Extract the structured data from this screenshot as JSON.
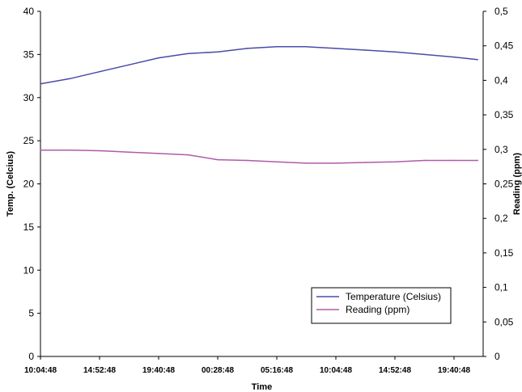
{
  "chart_data": {
    "type": "line",
    "x_label": "Time",
    "y_left_label": "Temp. (Celcius)",
    "y_right_label": "Reading (ppm)",
    "x_ticks": [
      "10:04:48",
      "14:52:48",
      "19:40:48",
      "00:28:48",
      "05:16:48",
      "10:04:48",
      "14:52:48",
      "19:40:48"
    ],
    "y_left": {
      "min": 0,
      "max": 40,
      "ticks": [
        "0",
        "5",
        "10",
        "15",
        "20",
        "25",
        "30",
        "35",
        "40"
      ]
    },
    "y_right": {
      "min": 0,
      "max": 0.5,
      "ticks": [
        "0",
        "0,05",
        "0,1",
        "0,15",
        "0,2",
        "0,25",
        "0,3",
        "0,35",
        "0,4",
        "0,45",
        "0,5"
      ]
    },
    "grid": false,
    "legend": {
      "position": "bottom-right",
      "entries": [
        "Temperature (Celsius)",
        "Reading (ppm)"
      ]
    },
    "series": [
      {
        "name": "Temperature (Celsius)",
        "axis": "left",
        "color": "#4b4ba8",
        "x_index": [
          0,
          0.5,
          1,
          1.5,
          2,
          2.5,
          3,
          3.5,
          4,
          4.5,
          5,
          5.5,
          6,
          6.5,
          7,
          7.4
        ],
        "values": [
          31.6,
          32.2,
          33.0,
          33.8,
          34.6,
          35.1,
          35.3,
          35.7,
          35.9,
          35.9,
          35.7,
          35.5,
          35.3,
          35.0,
          34.7,
          34.4
        ]
      },
      {
        "name": "Reading (ppm)",
        "axis": "right",
        "color": "#b05aa8",
        "x_index": [
          0,
          0.5,
          1,
          1.5,
          2,
          2.5,
          3,
          3.5,
          4,
          4.5,
          5,
          5.5,
          6,
          6.5,
          7,
          7.4
        ],
        "values": [
          0.299,
          0.299,
          0.298,
          0.296,
          0.294,
          0.292,
          0.285,
          0.284,
          0.282,
          0.28,
          0.28,
          0.281,
          0.282,
          0.284,
          0.284,
          0.284
        ]
      }
    ]
  }
}
